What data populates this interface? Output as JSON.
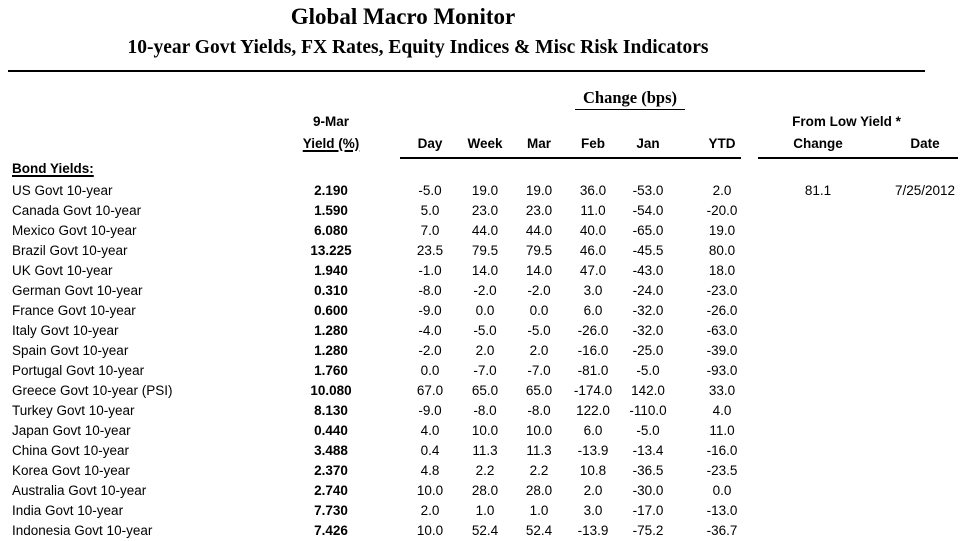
{
  "page": {
    "title": "Global Macro Monitor",
    "subtitle": "10-year Govt Yields, FX Rates, Equity Indices & Misc Risk Indicators"
  },
  "table": {
    "change_group_header": "Change (bps)",
    "asof_date": "9-Mar",
    "asof_label": "Yield (%)",
    "change_columns": [
      "Day",
      "Week",
      "Mar",
      "Feb",
      "Jan",
      "YTD"
    ],
    "from_low_group_header": "From Low Yield *",
    "from_low_columns": [
      "Change",
      "Date"
    ],
    "section_label": "Bond Yields:",
    "rows": [
      [
        "US Govt 10-year",
        "2.190",
        "-5.0",
        "19.0",
        "19.0",
        "36.0",
        "-53.0",
        "2.0",
        "81.1",
        "7/25/2012"
      ],
      [
        "Canada Govt 10-year",
        "1.590",
        "5.0",
        "23.0",
        "23.0",
        "11.0",
        "-54.0",
        "-20.0",
        "",
        ""
      ],
      [
        "Mexico Govt 10-year",
        "6.080",
        "7.0",
        "44.0",
        "44.0",
        "40.0",
        "-65.0",
        "19.0",
        "",
        ""
      ],
      [
        "Brazil Govt 10-year",
        "13.225",
        "23.5",
        "79.5",
        "79.5",
        "46.0",
        "-45.5",
        "80.0",
        "",
        ""
      ],
      [
        "UK Govt 10-year",
        "1.940",
        "-1.0",
        "14.0",
        "14.0",
        "47.0",
        "-43.0",
        "18.0",
        "",
        ""
      ],
      [
        "German Govt 10-year",
        "0.310",
        "-8.0",
        "-2.0",
        "-2.0",
        "3.0",
        "-24.0",
        "-23.0",
        "",
        ""
      ],
      [
        "France Govt 10-year",
        "0.600",
        "-9.0",
        "0.0",
        "0.0",
        "6.0",
        "-32.0",
        "-26.0",
        "",
        ""
      ],
      [
        "Italy Govt 10-year",
        "1.280",
        "-4.0",
        "-5.0",
        "-5.0",
        "-26.0",
        "-32.0",
        "-63.0",
        "",
        ""
      ],
      [
        "Spain Govt 10-year",
        "1.280",
        "-2.0",
        "2.0",
        "2.0",
        "-16.0",
        "-25.0",
        "-39.0",
        "",
        ""
      ],
      [
        "Portugal Govt 10-year",
        "1.760",
        "0.0",
        "-7.0",
        "-7.0",
        "-81.0",
        "-5.0",
        "-93.0",
        "",
        ""
      ],
      [
        "Greece Govt 10-year (PSI)",
        "10.080",
        "67.0",
        "65.0",
        "65.0",
        "-174.0",
        "142.0",
        "33.0",
        "",
        ""
      ],
      [
        "Turkey Govt 10-year",
        "8.130",
        "-9.0",
        "-8.0",
        "-8.0",
        "122.0",
        "-110.0",
        "4.0",
        "",
        ""
      ],
      [
        "Japan Govt 10-year",
        "0.440",
        "4.0",
        "10.0",
        "10.0",
        "6.0",
        "-5.0",
        "11.0",
        "",
        ""
      ],
      [
        "China Govt 10-year",
        "3.488",
        "0.4",
        "11.3",
        "11.3",
        "-13.9",
        "-13.4",
        "-16.0",
        "",
        ""
      ],
      [
        "Korea Govt 10-year",
        "2.370",
        "4.8",
        "2.2",
        "2.2",
        "10.8",
        "-36.5",
        "-23.5",
        "",
        ""
      ],
      [
        "Australia Govt 10-year",
        "2.740",
        "10.0",
        "28.0",
        "28.0",
        "2.0",
        "-30.0",
        "0.0",
        "",
        ""
      ],
      [
        "India Govt 10-year",
        "7.730",
        "2.0",
        "1.0",
        "1.0",
        "3.0",
        "-17.0",
        "-13.0",
        "",
        ""
      ],
      [
        "Indonesia Govt 10-year",
        "7.426",
        "10.0",
        "52.4",
        "52.4",
        "-13.9",
        "-75.2",
        "-36.7",
        "",
        ""
      ]
    ]
  },
  "colors": {
    "text": "#000000",
    "background": "#ffffff",
    "rule": "#000000"
  }
}
